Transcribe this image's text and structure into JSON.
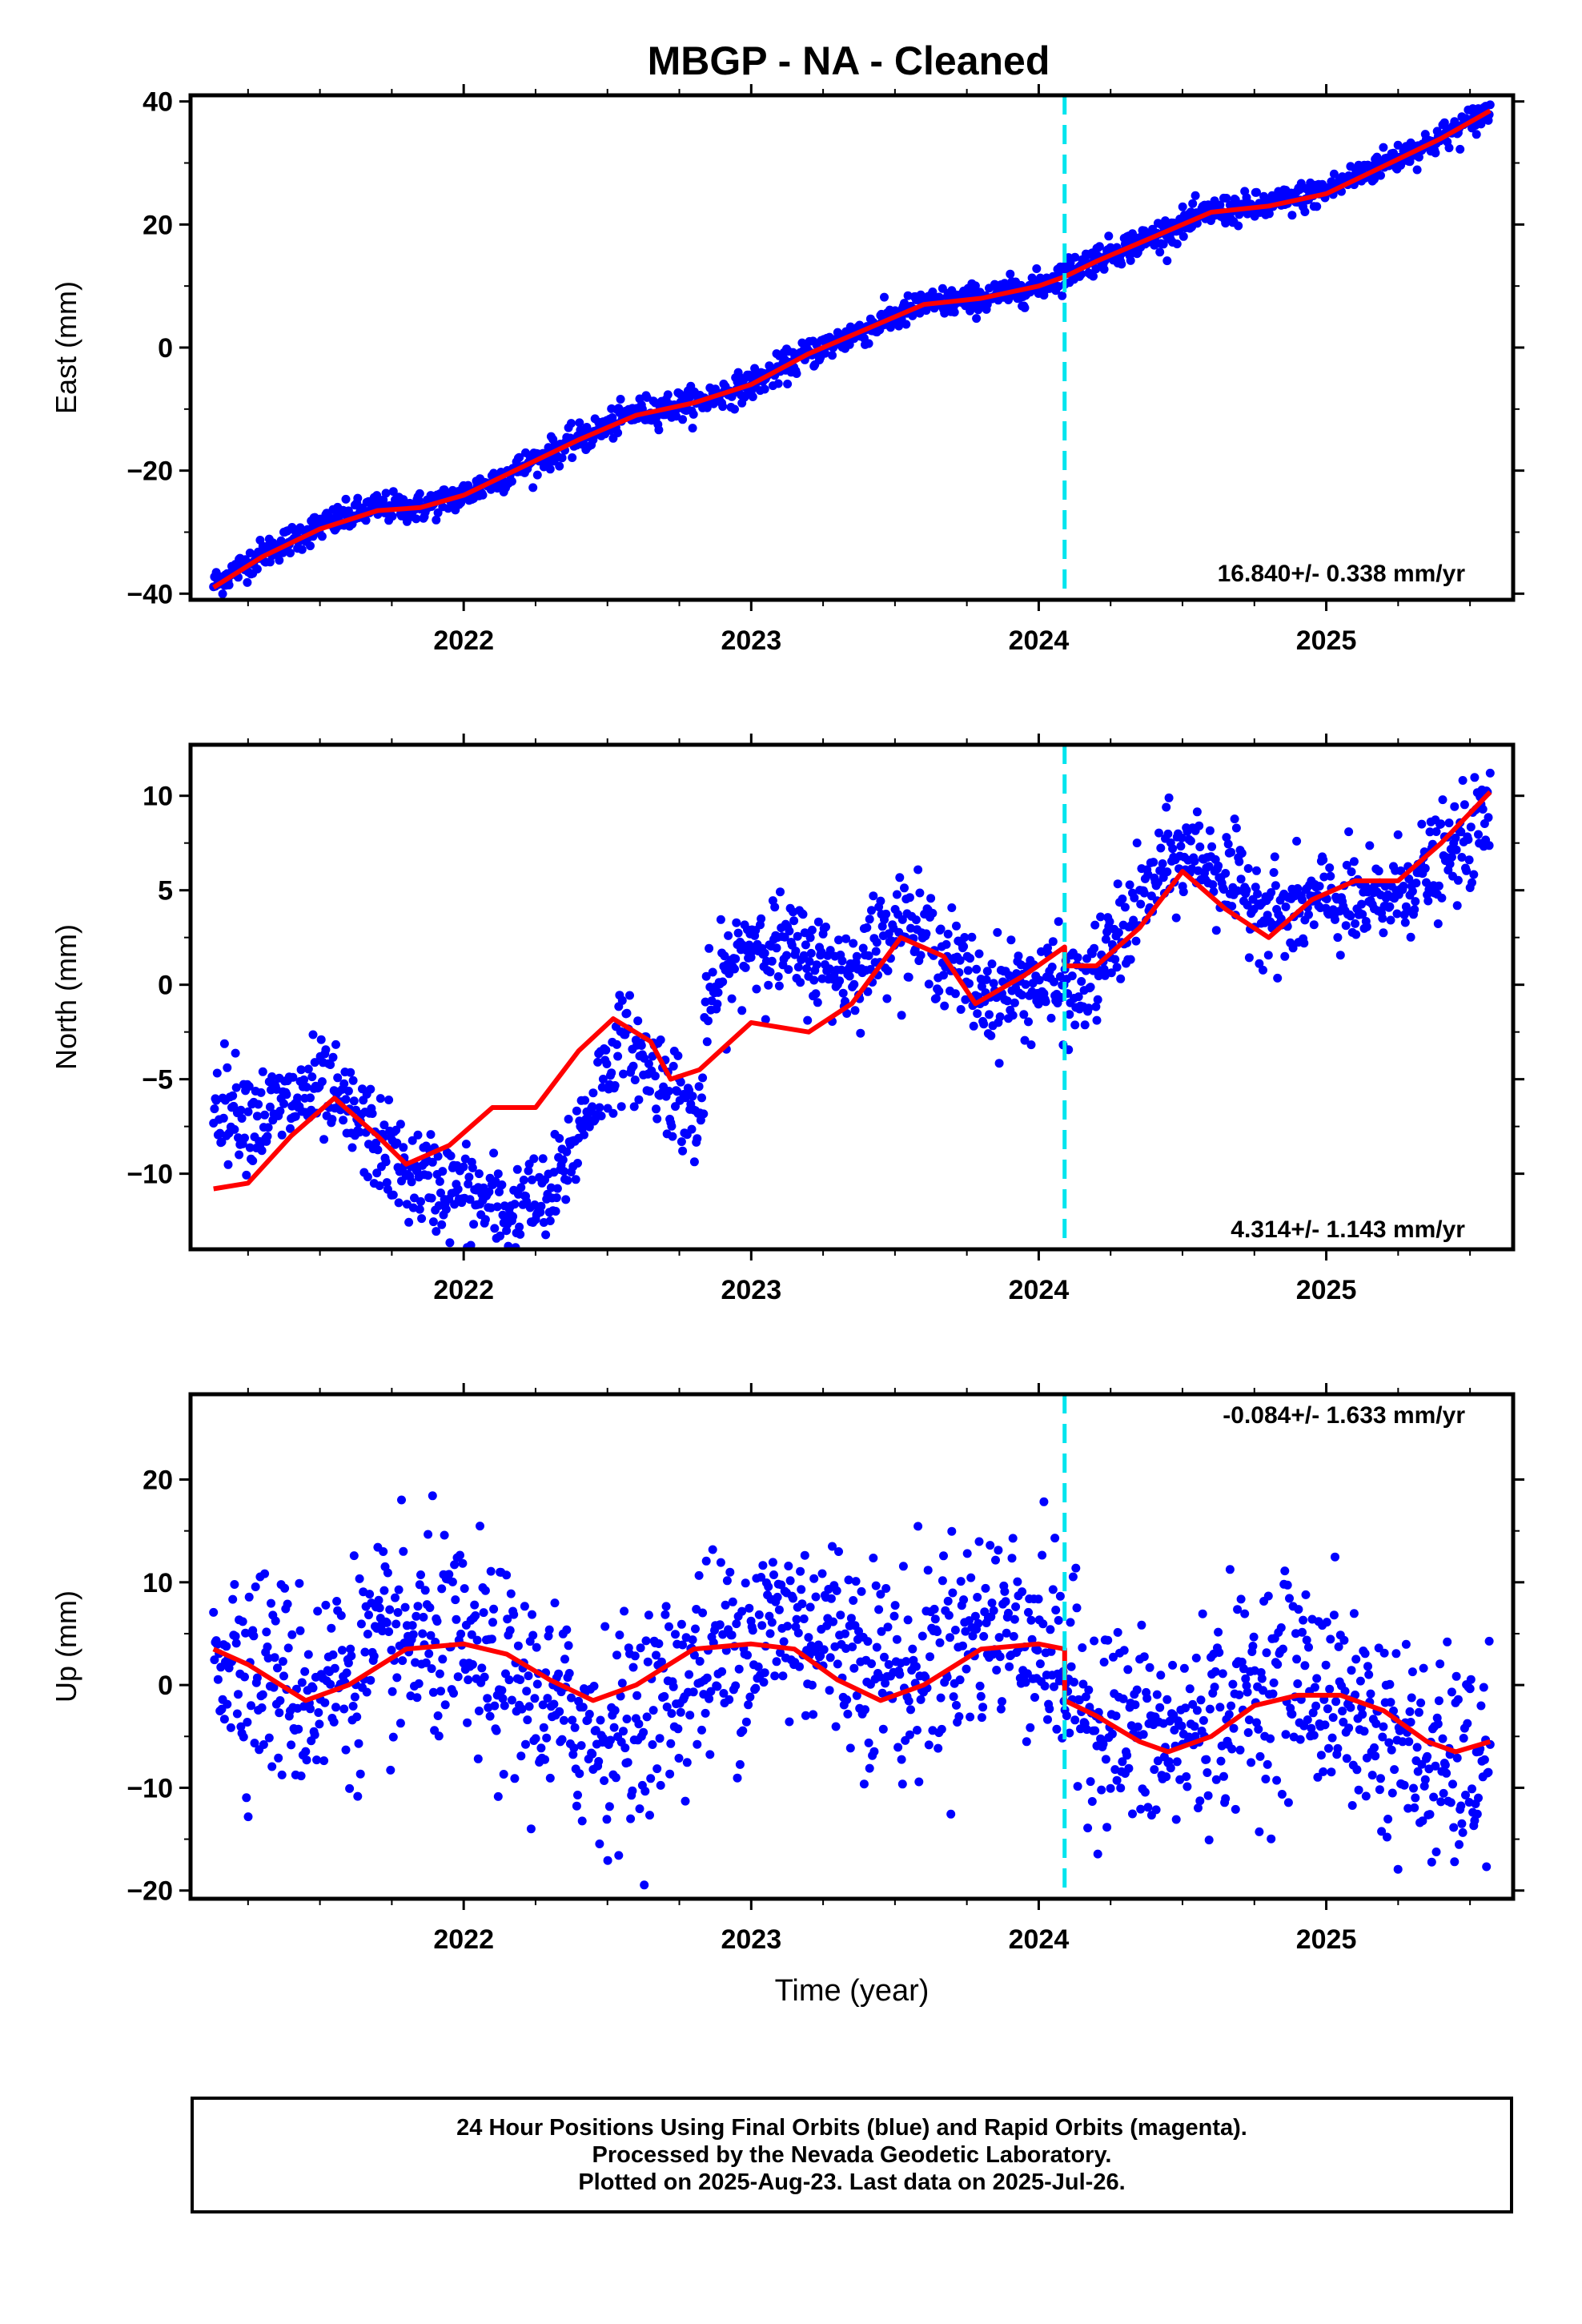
{
  "title": "MBGP  - NA - Cleaned",
  "colors": {
    "final_orbits": "#0000ff",
    "model": "#ff0000",
    "marker_line": "#00e5ee",
    "axes": "#000000"
  },
  "chart_data": [
    {
      "type": "scatter",
      "component": "East",
      "ylabel": "East (mm)",
      "xlabel": "",
      "xlim": [
        2021.05,
        2025.65
      ],
      "ylim": [
        -41,
        41
      ],
      "yticks": [
        -40,
        -20,
        0,
        20,
        40
      ],
      "ytick_labels": [
        "−40",
        "−20",
        "0",
        "20",
        "40"
      ],
      "xticks": [
        2022,
        2023,
        2024,
        2025
      ],
      "xtick_labels": [
        "2022",
        "2023",
        "2024",
        "2025"
      ],
      "rate_label": "16.840+/- 0.338 mm/yr",
      "break_epoch": 2024.09,
      "series": [
        {
          "role": "observations",
          "scatter": 1.2,
          "x": [
            2021.13,
            2021.3,
            2021.5,
            2021.7,
            2021.85,
            2022.0,
            2022.2,
            2022.4,
            2022.6,
            2022.8,
            2023.0,
            2023.2,
            2023.4,
            2023.6,
            2023.8,
            2024.0,
            2024.2,
            2024.4,
            2024.6,
            2024.8,
            2025.0,
            2025.2,
            2025.4,
            2025.57
          ],
          "y": [
            -38.5,
            -33.5,
            -29.0,
            -26.0,
            -26.0,
            -24.0,
            -19.5,
            -15.0,
            -10.5,
            -9.0,
            -6.0,
            -1.0,
            3.0,
            7.0,
            8.0,
            10.0,
            14.5,
            18.0,
            22.0,
            23.0,
            25.5,
            30.0,
            34.0,
            38.5
          ]
        },
        {
          "role": "model",
          "x": [
            2021.13,
            2021.3,
            2021.5,
            2021.7,
            2021.85,
            2022.0,
            2022.2,
            2022.4,
            2022.6,
            2022.8,
            2023.0,
            2023.2,
            2023.4,
            2023.6,
            2023.8,
            2024.0,
            2024.09,
            2024.2,
            2024.4,
            2024.6,
            2024.8,
            2025.0,
            2025.2,
            2025.4,
            2025.57
          ],
          "y": [
            -39.0,
            -34.0,
            -29.5,
            -26.5,
            -26.0,
            -24.0,
            -19.5,
            -15.0,
            -11.0,
            -9.0,
            -6.0,
            -1.0,
            3.0,
            7.0,
            8.0,
            10.0,
            11.5,
            14.0,
            18.0,
            22.0,
            23.0,
            25.0,
            29.5,
            34.0,
            38.5
          ]
        }
      ]
    },
    {
      "type": "scatter",
      "component": "North",
      "ylabel": "North (mm)",
      "xlabel": "",
      "xlim": [
        2021.05,
        2025.65
      ],
      "ylim": [
        -14,
        12.7
      ],
      "yticks": [
        -10,
        -5,
        0,
        5,
        10
      ],
      "ytick_labels": [
        "−10",
        "−5",
        "0",
        "5",
        "10"
      ],
      "xticks": [
        2022,
        2023,
        2024,
        2025
      ],
      "xtick_labels": [
        "2022",
        "2023",
        "2024",
        "2025"
      ],
      "rate_label": "4.314+/- 1.143 mm/yr",
      "break_epoch": 2024.09,
      "series": [
        {
          "role": "observations",
          "scatter": 1.3,
          "x": [
            2021.13,
            2021.3,
            2021.5,
            2021.65,
            2021.8,
            2022.0,
            2022.15,
            2022.3,
            2022.45,
            2022.55,
            2022.7,
            2022.82,
            2022.85,
            2023.0,
            2023.2,
            2023.35,
            2023.5,
            2023.65,
            2023.8,
            2024.0,
            2024.15,
            2024.3,
            2024.45,
            2024.55,
            2024.7,
            2024.85,
            2025.0,
            2025.15,
            2025.3,
            2025.45,
            2025.57
          ],
          "y": [
            -6.0,
            -7.0,
            -5.5,
            -7.5,
            -10.0,
            -11.0,
            -12.0,
            -11.5,
            -6.0,
            -3.0,
            -5.0,
            -7.5,
            -1.0,
            2.5,
            1.5,
            0.5,
            3.5,
            2.0,
            -0.5,
            0.0,
            -0.5,
            3.0,
            6.5,
            7.0,
            5.0,
            3.5,
            4.5,
            4.0,
            5.5,
            7.0,
            9.0
          ]
        },
        {
          "role": "model",
          "x": [
            2021.13,
            2021.25,
            2021.4,
            2021.55,
            2021.7,
            2021.8,
            2021.95,
            2022.1,
            2022.25,
            2022.4,
            2022.52,
            2022.65,
            2022.72,
            2022.82,
            2023.0,
            2023.2,
            2023.35,
            2023.52,
            2023.67,
            2023.78,
            2023.95,
            2024.09,
            2024.09,
            2024.2,
            2024.35,
            2024.5,
            2024.65,
            2024.8,
            2024.95,
            2025.1,
            2025.25,
            2025.4,
            2025.57
          ],
          "y": [
            -10.8,
            -10.5,
            -8.0,
            -6.0,
            -8.0,
            -9.5,
            -8.5,
            -6.5,
            -6.5,
            -3.5,
            -1.8,
            -3.0,
            -5.0,
            -4.5,
            -2.0,
            -2.5,
            -1.0,
            2.5,
            1.5,
            -1.0,
            0.5,
            2.0,
            1.0,
            1.0,
            3.0,
            6.0,
            4.0,
            2.5,
            4.5,
            5.5,
            5.5,
            7.5,
            10.2
          ]
        }
      ]
    },
    {
      "type": "scatter",
      "component": "Up",
      "ylabel": "Up (mm)",
      "xlabel": "Time (year)",
      "xlim": [
        2021.05,
        2025.65
      ],
      "ylim": [
        -20.8,
        28.3
      ],
      "yticks": [
        -20,
        -10,
        0,
        10,
        20
      ],
      "ytick_labels": [
        "−20",
        "−10",
        "0",
        "10",
        "20"
      ],
      "xticks": [
        2022,
        2023,
        2024,
        2025
      ],
      "xtick_labels": [
        "2022",
        "2023",
        "2024",
        "2025"
      ],
      "rate_label": "-0.084+/- 1.633 mm/yr",
      "break_epoch": 2024.09,
      "series": [
        {
          "role": "observations",
          "scatter": 5.0,
          "x": [
            2021.13,
            2021.3,
            2021.45,
            2021.6,
            2021.75,
            2021.9,
            2022.05,
            2022.2,
            2022.35,
            2022.5,
            2022.65,
            2022.8,
            2022.95,
            2023.1,
            2023.25,
            2023.4,
            2023.55,
            2023.7,
            2023.85,
            2024.0,
            2024.15,
            2024.3,
            2024.45,
            2024.6,
            2024.75,
            2024.9,
            2025.05,
            2025.2,
            2025.35,
            2025.5,
            2025.57
          ],
          "y": [
            4.0,
            1.5,
            -1.0,
            1.5,
            3.5,
            4.5,
            2.5,
            -0.5,
            -3.0,
            -5.0,
            -2.5,
            1.5,
            4.0,
            6.0,
            5.5,
            3.0,
            0.5,
            4.5,
            6.0,
            5.0,
            -2.0,
            -4.5,
            -6.0,
            -3.0,
            -0.5,
            1.0,
            -1.5,
            -4.5,
            -8.0,
            -8.5,
            -6.0
          ]
        },
        {
          "role": "model",
          "x": [
            2021.13,
            2021.25,
            2021.45,
            2021.6,
            2021.8,
            2022.0,
            2022.15,
            2022.3,
            2022.45,
            2022.6,
            2022.8,
            2023.0,
            2023.15,
            2023.3,
            2023.45,
            2023.6,
            2023.8,
            2024.0,
            2024.09,
            2024.09,
            2024.2,
            2024.35,
            2024.45,
            2024.6,
            2024.75,
            2024.9,
            2025.05,
            2025.2,
            2025.35,
            2025.45,
            2025.57
          ],
          "y": [
            3.5,
            2.0,
            -1.5,
            0.0,
            3.5,
            4.0,
            3.0,
            0.5,
            -1.5,
            0.0,
            3.5,
            4.0,
            3.5,
            0.5,
            -1.5,
            0.0,
            3.5,
            4.0,
            3.5,
            -1.5,
            -3.0,
            -5.5,
            -6.5,
            -5.0,
            -2.0,
            -1.0,
            -1.0,
            -2.5,
            -5.5,
            -6.5,
            -5.5
          ]
        }
      ]
    }
  ],
  "caption_lines": [
    "24 Hour Positions Using Final Orbits (blue) and Rapid Orbits (magenta).",
    "Processed by the Nevada Geodetic Laboratory.",
    "Plotted on 2025-Aug-23. Last data on 2025-Jul-26."
  ]
}
